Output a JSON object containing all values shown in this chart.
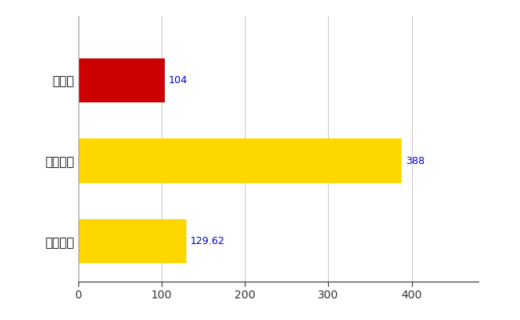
{
  "categories": [
    "全国平均",
    "全国最大",
    "栃木県"
  ],
  "values": [
    129.62,
    388,
    104
  ],
  "bar_colors": [
    "#FFD700",
    "#FFD700",
    "#CC0000"
  ],
  "value_labels": [
    "129.62",
    "388",
    "104"
  ],
  "xlim": [
    0,
    480
  ],
  "xticks": [
    0,
    100,
    200,
    300,
    400
  ],
  "bar_height": 0.55,
  "background_color": "#FFFFFF",
  "grid_color": "#CCCCCC",
  "label_color": "#0000CD",
  "label_fontsize": 9,
  "tick_fontsize": 10,
  "category_fontsize": 11
}
